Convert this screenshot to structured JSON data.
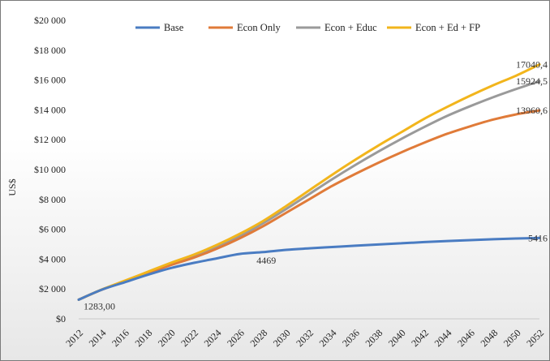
{
  "chart_data": {
    "type": "line",
    "title": "",
    "xlabel": "",
    "ylabel": "US$",
    "x": [
      2012,
      2014,
      2016,
      2018,
      2020,
      2022,
      2024,
      2026,
      2028,
      2030,
      2032,
      2034,
      2036,
      2038,
      2040,
      2042,
      2044,
      2046,
      2048,
      2050,
      2052
    ],
    "x_tick_labels": [
      "2012",
      "2014",
      "2016",
      "2018",
      "2020",
      "2022",
      "2024",
      "2026",
      "2028",
      "2030",
      "2032",
      "2034",
      "2036",
      "2038",
      "2040",
      "2042",
      "2044",
      "2046",
      "2048",
      "2050",
      "2052"
    ],
    "y_tick_labels": [
      "$0",
      "$2 000",
      "$4 000",
      "$6 000",
      "$8 000",
      "$10 000",
      "$12 000",
      "$14 000",
      "$16 000",
      "$18 000",
      "$20 000"
    ],
    "ylim": [
      0,
      20000
    ],
    "grid": false,
    "legend_position": "top",
    "series": [
      {
        "name": "Base",
        "color": "#4a7cc2",
        "values": [
          1283,
          1950,
          2450,
          2950,
          3400,
          3750,
          4050,
          4350,
          4469,
          4620,
          4720,
          4810,
          4900,
          4980,
          5060,
          5140,
          5210,
          5270,
          5330,
          5380,
          5416
        ]
      },
      {
        "name": "Econ Only",
        "color": "#e07b39",
        "values": [
          1283,
          1950,
          2500,
          3050,
          3600,
          4100,
          4700,
          5400,
          6200,
          7100,
          8000,
          8900,
          9700,
          10450,
          11150,
          11800,
          12400,
          12900,
          13350,
          13700,
          13960.6
        ]
      },
      {
        "name": "Econ + Educ",
        "color": "#9a9a9a",
        "values": [
          1283,
          1950,
          2520,
          3100,
          3700,
          4250,
          4850,
          5550,
          6400,
          7350,
          8350,
          9350,
          10300,
          11200,
          12050,
          12850,
          13600,
          14250,
          14850,
          15400,
          15924.5
        ]
      },
      {
        "name": "Econ + Ed + FP",
        "color": "#f2b51c",
        "values": [
          1283,
          1960,
          2550,
          3150,
          3750,
          4300,
          4950,
          5700,
          6550,
          7550,
          8600,
          9650,
          10650,
          11600,
          12500,
          13400,
          14200,
          14950,
          15650,
          16300,
          17040.4
        ]
      }
    ],
    "annotations": [
      {
        "text": "1283,00",
        "x": 2012,
        "y": 1283
      },
      {
        "text": "4469",
        "x": 2028,
        "y": 4469
      },
      {
        "text": "5416",
        "x": 2052,
        "y": 5416
      },
      {
        "text": "13960,6",
        "x": 2052,
        "y": 13960.6
      },
      {
        "text": "15924,5",
        "x": 2052,
        "y": 15924.5
      },
      {
        "text": "17040,4",
        "x": 2052,
        "y": 17040.4
      }
    ]
  }
}
